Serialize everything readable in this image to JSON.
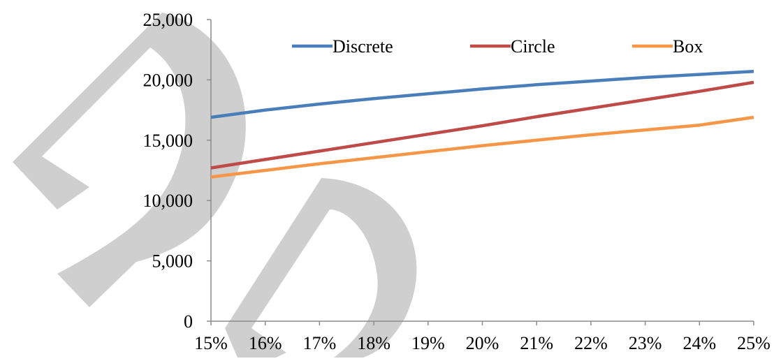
{
  "chart_data": {
    "type": "line",
    "title": "",
    "xlabel": "",
    "ylabel": "",
    "x": [
      0.15,
      0.16,
      0.17,
      0.18,
      0.19,
      0.2,
      0.21,
      0.22,
      0.23,
      0.24,
      0.25
    ],
    "x_tick_labels": [
      "15%",
      "16%",
      "17%",
      "18%",
      "19%",
      "20%",
      "21%",
      "22%",
      "23%",
      "24%",
      "25%"
    ],
    "xlim": [
      0.15,
      0.25
    ],
    "ylim": [
      0,
      25000
    ],
    "y_ticks": [
      0,
      5000,
      10000,
      15000,
      20000,
      25000
    ],
    "y_tick_labels": [
      "0",
      "5,000",
      "10,000",
      "15,000",
      "20,000",
      "25,000"
    ],
    "grid": false,
    "legend_position": "top",
    "series": [
      {
        "name": "Discrete",
        "color": "#4a7ebb",
        "values": [
          16900,
          17500,
          18000,
          18450,
          18850,
          19250,
          19600,
          19900,
          20200,
          20450,
          20700
        ]
      },
      {
        "name": "Circle",
        "color": "#be4b48",
        "values": [
          12700,
          13400,
          14100,
          14800,
          15500,
          16200,
          16950,
          17650,
          18350,
          19050,
          19800
        ]
      },
      {
        "name": "Box",
        "color": "#f79646",
        "values": [
          11950,
          12500,
          13050,
          13550,
          14050,
          14550,
          15000,
          15450,
          15850,
          16250,
          16900
        ]
      }
    ]
  },
  "watermark": {
    "text": "DP",
    "color": "#cccccc"
  }
}
